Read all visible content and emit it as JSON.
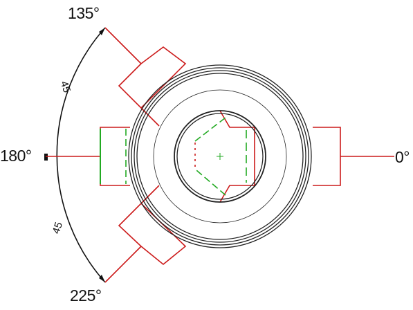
{
  "angle_labels": {
    "a135": "135°",
    "a180": "180°",
    "a0": "0°",
    "a225": "225°"
  },
  "dimension_labels": {
    "upper": "45",
    "lower": "45"
  },
  "colors": {
    "outline": "#222222",
    "branch": "#cc1a1a",
    "hidden": "#22aa22"
  }
}
